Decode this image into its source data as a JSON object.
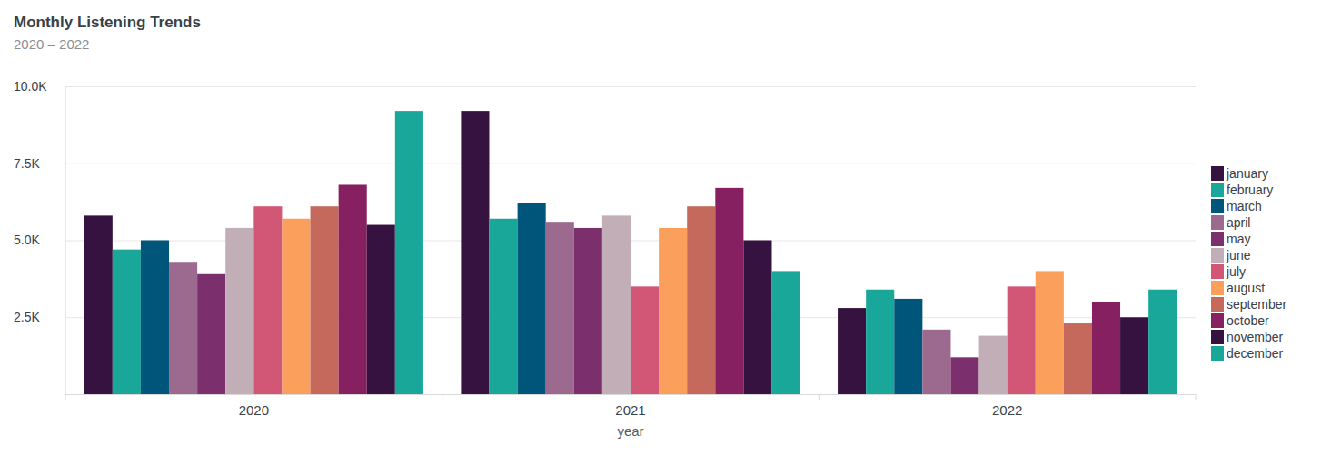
{
  "chart_data": {
    "type": "bar",
    "title": "Monthly Listening Trends",
    "subtitle": "2020 – 2022",
    "x_label": "year",
    "categories": [
      "2020",
      "2021",
      "2022"
    ],
    "series": [
      {
        "name": "january",
        "color": "#35123f",
        "values": [
          5800,
          9200,
          2800
        ]
      },
      {
        "name": "february",
        "color": "#19a79a",
        "values": [
          4700,
          5700,
          3400
        ]
      },
      {
        "name": "march",
        "color": "#00567a",
        "values": [
          5000,
          6200,
          3100
        ]
      },
      {
        "name": "april",
        "color": "#9b6a8e",
        "values": [
          4300,
          5600,
          2100
        ]
      },
      {
        "name": "may",
        "color": "#7b2f6d",
        "values": [
          3900,
          5400,
          1200
        ]
      },
      {
        "name": "june",
        "color": "#c1aeb6",
        "values": [
          5400,
          5800,
          1900
        ]
      },
      {
        "name": "july",
        "color": "#d25675",
        "values": [
          6100,
          3500,
          3500
        ]
      },
      {
        "name": "august",
        "color": "#fba05c",
        "values": [
          5700,
          5400,
          4000
        ]
      },
      {
        "name": "september",
        "color": "#c4695c",
        "values": [
          6100,
          6100,
          2300
        ]
      },
      {
        "name": "october",
        "color": "#872060",
        "values": [
          6800,
          6700,
          3000
        ]
      },
      {
        "name": "november",
        "color": "#35123f",
        "values": [
          5500,
          5000,
          2500
        ]
      },
      {
        "name": "december",
        "color": "#19a79a",
        "values": [
          9200,
          4000,
          3400
        ]
      }
    ],
    "ylim": [
      0,
      10000
    ],
    "yticks": [
      {
        "value": 2500,
        "label": "2.5K"
      },
      {
        "value": 5000,
        "label": "5.0K"
      },
      {
        "value": 7500,
        "label": "7.5K"
      },
      {
        "value": 10000,
        "label": "10.0K"
      }
    ],
    "grid": true,
    "legend": "right"
  }
}
